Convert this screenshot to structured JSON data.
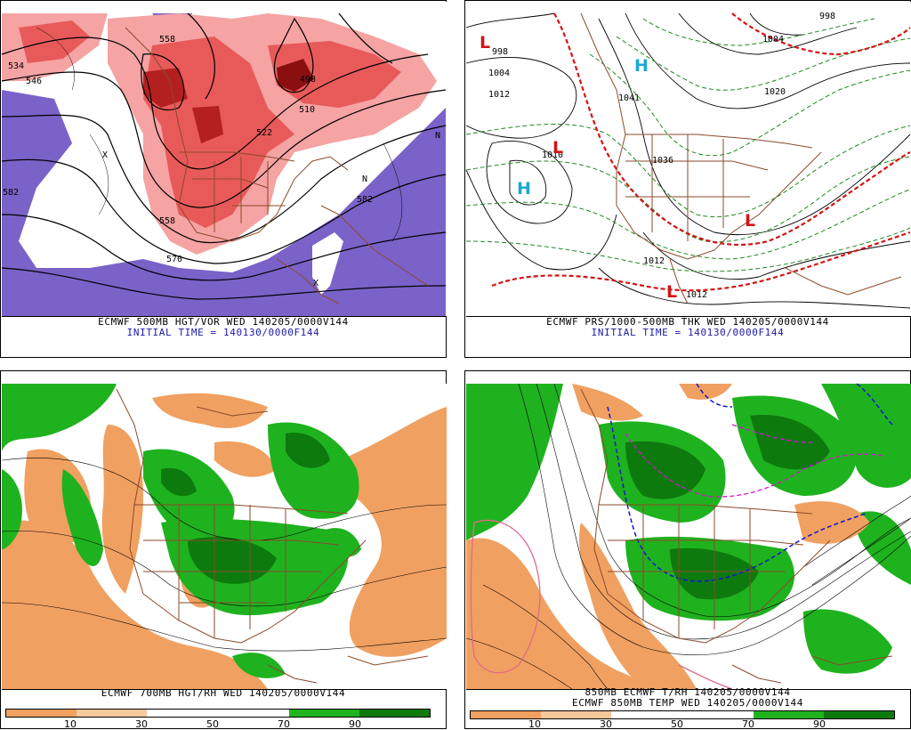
{
  "panels": {
    "p1": {
      "caption": "ECMWF 500MB HGT/VOR WED 140205/0000V144",
      "subcaption": "INITIAL TIME = 140130/0000F144",
      "labels": [
        "534",
        "546",
        "558",
        "498",
        "510",
        "522",
        "582",
        "570",
        "558",
        "582",
        "X",
        "N",
        "X",
        "N"
      ]
    },
    "p2": {
      "caption": "ECMWF PRS/1000-500MB THK WED 140205/0000V144",
      "subcaption": "INITIAL TIME = 140130/0000F144",
      "labels": [
        "998",
        "1004",
        "1012",
        "1020",
        "1041",
        "1036",
        "1012",
        "1012",
        "998",
        "1004",
        "1010"
      ],
      "lows": [
        "L",
        "L",
        "L",
        "L"
      ],
      "highs": [
        "H",
        "H"
      ]
    },
    "p3": {
      "caption": "ECMWF 700MB HGT/RH WED 140205/0000V144",
      "colorbar": {
        "ticks": [
          "10",
          "30",
          "50",
          "70",
          "90"
        ]
      }
    },
    "p4": {
      "caption_top": "850MB ECMWF T/RH 140205/0000V144",
      "caption": "ECMWF 850MB TEMP WED 140205/0000V144",
      "colorbar": {
        "ticks": [
          "10",
          "30",
          "50",
          "70",
          "90"
        ]
      }
    }
  },
  "colors": {
    "vor_light": "#f5a3a3",
    "vor_mid": "#e85a5a",
    "vor_dark": "#b42020",
    "vor_neg": "#7a62c8",
    "rh_dry": "#f0a060",
    "rh_wet_light": "#1fb21f",
    "rh_wet_dark": "#0d7a0d",
    "border": "#8b4a2a",
    "thk": "#1e8a1e",
    "thk_540": "#d41414",
    "temp_cold": "#1414d4",
    "temp_mag": "#d414d4"
  }
}
